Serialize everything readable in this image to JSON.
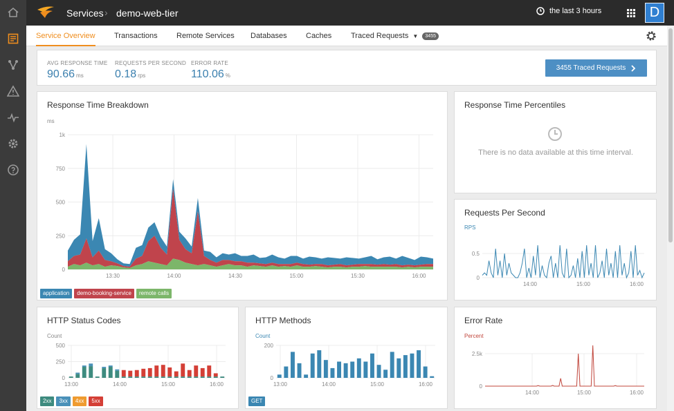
{
  "colors": {
    "accent": "#f08e1e",
    "application": "#3b87b2",
    "booking": "#c0444c",
    "remote": "#7cb66a",
    "s2xx": "#3e8b7f",
    "s3xx": "#4a91b9",
    "s4xx": "#ef9b30",
    "s5xx": "#d43f36",
    "error": "#c0443a"
  },
  "header": {
    "section": "Services",
    "service": "demo-web-tier",
    "time_range": "the last 3 hours",
    "avatar_letter": "D"
  },
  "sidebar": {
    "items": [
      "home-icon",
      "list-icon",
      "topology-icon",
      "alert-icon",
      "pulse-icon",
      "settings-icon",
      "help-icon"
    ]
  },
  "tabs": [
    "Service Overview",
    "Transactions",
    "Remote Services",
    "Databases",
    "Caches",
    "Traced Requests"
  ],
  "traced_badge": "3455",
  "kpis": [
    {
      "label": "AVG RESPONSE TIME",
      "value": "90.66",
      "unit": "ms"
    },
    {
      "label": "REQUESTS PER SECOND",
      "value": "0.18",
      "unit": "rps"
    },
    {
      "label": "ERROR RATE",
      "value": "110.06",
      "unit": "%"
    }
  ],
  "traced_button": "3455 Traced Requests",
  "percentiles": {
    "title": "Response Time Percentiles",
    "empty": "There is no data available at this time interval."
  },
  "chart_data": [
    {
      "type": "area",
      "title": "Response Time Breakdown",
      "ylabel": "ms",
      "ylim": [
        0,
        1000
      ],
      "yticks": [
        "0",
        "250",
        "500",
        "750",
        "1k"
      ],
      "xticks": [
        "13:30",
        "14:00",
        "14:30",
        "15:00",
        "15:30",
        "16:00"
      ],
      "grid": true,
      "legend_position": "bottom-left",
      "series": [
        {
          "name": "remote calls",
          "values": [
            20,
            40,
            30,
            50,
            30,
            40,
            20,
            30,
            25,
            15,
            10,
            30,
            40,
            60,
            50,
            40,
            30,
            80,
            70,
            50,
            40,
            30,
            40,
            30,
            20,
            30,
            40,
            30,
            30,
            20,
            30,
            25,
            20,
            30,
            20,
            25,
            20,
            30,
            20,
            20,
            25,
            20,
            15,
            20,
            20,
            15,
            20,
            20,
            25,
            20,
            20,
            20,
            20,
            20,
            15,
            20,
            15,
            20,
            20,
            20
          ]
        },
        {
          "name": "demo-booking-service",
          "values": [
            40,
            60,
            80,
            180,
            60,
            100,
            50,
            30,
            20,
            10,
            10,
            50,
            60,
            150,
            200,
            120,
            80,
            520,
            150,
            100,
            80,
            400,
            60,
            40,
            30,
            40,
            30,
            30,
            30,
            30,
            20,
            20,
            20,
            20,
            20,
            15,
            20,
            20,
            20,
            15,
            15,
            20,
            15,
            15,
            20,
            15,
            15,
            20,
            15,
            20,
            15,
            20,
            15,
            20,
            15,
            15,
            15,
            15,
            20,
            20
          ]
        },
        {
          "name": "application",
          "values": [
            80,
            120,
            150,
            700,
            120,
            240,
            80,
            60,
            30,
            20,
            20,
            80,
            80,
            100,
            100,
            80,
            60,
            70,
            60,
            80,
            50,
            100,
            40,
            60,
            40,
            50,
            40,
            60,
            40,
            50,
            60,
            40,
            50,
            60,
            50,
            40,
            60,
            50,
            40,
            60,
            50,
            40,
            60,
            50,
            40,
            60,
            50,
            40,
            50,
            60,
            40,
            50,
            60,
            40,
            70,
            50,
            40,
            60,
            50,
            40
          ]
        }
      ]
    },
    {
      "type": "line",
      "title": "Requests Per Second",
      "ylabel": "RPS",
      "ylim": [
        0,
        0.8
      ],
      "yticks": [
        "0",
        "0.5"
      ],
      "xticks": [
        "14:00",
        "15:00",
        "16:00"
      ],
      "grid": true,
      "series": [
        {
          "values": [
            0.05,
            0.1,
            0.05,
            0.35,
            0.1,
            0.0,
            0.6,
            0.05,
            0.35,
            0.0,
            0.5,
            0.05,
            0.3,
            0.1,
            0.05,
            0.0,
            0.0,
            0.1,
            0.3,
            0.6,
            0.0,
            0.2,
            0.0,
            0.45,
            0.05,
            0.75,
            0.0,
            0.25,
            0.05,
            0.0,
            0.3,
            0.45,
            0.0,
            0.3,
            0.0,
            0.75,
            0.1,
            0.0,
            0.6,
            0.0,
            0.05,
            0.25,
            0.0,
            0.4,
            0.0,
            0.55,
            0.0,
            0.75,
            0.05,
            0.3,
            0.0,
            0.7,
            0.0,
            0.1,
            0.35,
            0.0,
            0.6,
            0.05,
            0.3,
            0.0,
            0.55,
            0.0,
            0.75,
            0.05,
            0.3,
            0.0,
            0.1,
            0.55,
            0.0,
            0.8,
            0.05,
            0.15,
            0.0,
            0.1
          ]
        }
      ]
    },
    {
      "type": "bar",
      "title": "HTTP Status Codes",
      "ylabel": "Count",
      "ylim": [
        0,
        500
      ],
      "yticks": [
        "0",
        "250",
        "500"
      ],
      "xticks": [
        "13:00",
        "14:00",
        "15:00",
        "16:00"
      ],
      "grid": true,
      "legend_position": "bottom-left",
      "series": [
        {
          "name": "2xx",
          "values": [
            20,
            60,
            170,
            180,
            20,
            150,
            170,
            110,
            20,
            20,
            20,
            20,
            20,
            20,
            20,
            20,
            20,
            20,
            20,
            20,
            20,
            20,
            20,
            20
          ]
        },
        {
          "name": "3xx",
          "values": [
            0,
            20,
            20,
            40,
            0,
            20,
            20,
            20,
            0,
            0,
            0,
            0,
            0,
            0,
            0,
            0,
            0,
            0,
            0,
            0,
            0,
            0,
            0,
            0
          ]
        },
        {
          "name": "4xx",
          "values": [
            0,
            0,
            0,
            0,
            0,
            0,
            0,
            0,
            0,
            0,
            0,
            0,
            0,
            0,
            0,
            0,
            0,
            0,
            0,
            0,
            0,
            0,
            0,
            0
          ]
        },
        {
          "name": "5xx",
          "values": [
            0,
            0,
            0,
            0,
            0,
            0,
            0,
            0,
            100,
            90,
            100,
            120,
            130,
            170,
            180,
            140,
            80,
            200,
            100,
            170,
            130,
            170,
            50,
            0
          ]
        }
      ]
    },
    {
      "type": "bar",
      "title": "HTTP Methods",
      "ylabel": "Count",
      "ylim": [
        0,
        200
      ],
      "yticks": [
        "0",
        "200"
      ],
      "xticks": [
        "13:00",
        "14:00",
        "15:00",
        "16:00"
      ],
      "grid": true,
      "legend_position": "bottom-left",
      "series": [
        {
          "name": "GET",
          "values": [
            20,
            70,
            160,
            90,
            20,
            150,
            170,
            110,
            60,
            100,
            90,
            100,
            120,
            100,
            150,
            80,
            50,
            160,
            120,
            140,
            150,
            170,
            70,
            10
          ]
        }
      ]
    },
    {
      "type": "line",
      "title": "Error Rate",
      "ylabel": "Percent",
      "ylim": [
        0,
        3500
      ],
      "yticks": [
        "0",
        "2.5k"
      ],
      "xticks": [
        "14:00",
        "15:00",
        "16:00"
      ],
      "grid": true,
      "series": [
        {
          "values": [
            0,
            0,
            0,
            0,
            0,
            0,
            0,
            0,
            0,
            0,
            0,
            0,
            0,
            0,
            0,
            0,
            0,
            0,
            0,
            0,
            0,
            0,
            0,
            0,
            0,
            0,
            0,
            0,
            0,
            0,
            0,
            0,
            0,
            50,
            0,
            0,
            0,
            0,
            0,
            0,
            0,
            0,
            60,
            0,
            0,
            0,
            0,
            600,
            0,
            0,
            0,
            0,
            0,
            0,
            0,
            0,
            0,
            0,
            2500,
            0,
            0,
            0,
            0,
            0,
            0,
            0,
            0,
            3300,
            0,
            0,
            0,
            0,
            0,
            0,
            0,
            0,
            0,
            0,
            0,
            0,
            0,
            50,
            0,
            0,
            0,
            0,
            0,
            0,
            0,
            0,
            0,
            0,
            0,
            0,
            0,
            0,
            0,
            0,
            0,
            0
          ]
        }
      ]
    }
  ]
}
